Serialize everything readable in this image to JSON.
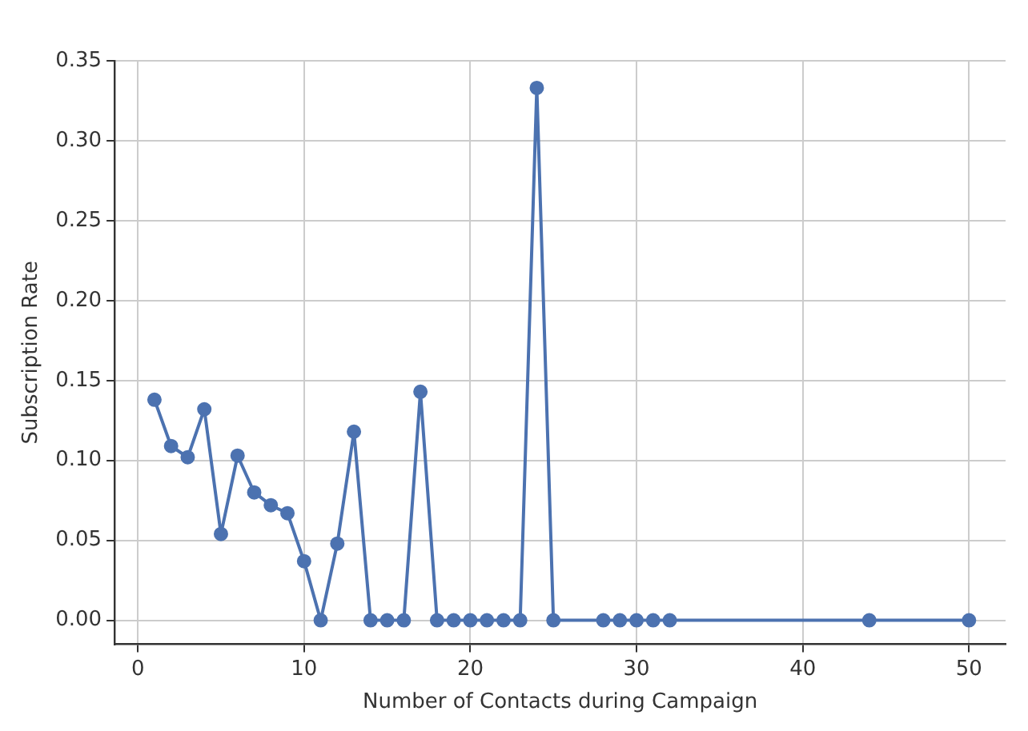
{
  "chart_data": {
    "type": "line",
    "xlabel": "Number of Contacts during Campaign",
    "ylabel": "Subscription Rate",
    "x": [
      1,
      2,
      3,
      4,
      5,
      6,
      7,
      8,
      9,
      10,
      11,
      12,
      13,
      14,
      15,
      16,
      17,
      18,
      19,
      20,
      21,
      22,
      23,
      24,
      25,
      28,
      29,
      30,
      31,
      32,
      44,
      50
    ],
    "series": [
      {
        "color": "#4c72b0",
        "values": [
          0.138,
          0.109,
          0.102,
          0.132,
          0.054,
          0.103,
          0.08,
          0.072,
          0.067,
          0.037,
          0,
          0.048,
          0.118,
          0,
          0,
          0,
          0.143,
          0,
          0,
          0,
          0,
          0,
          0,
          0.333,
          0,
          0,
          0,
          0,
          0,
          0,
          0,
          0
        ]
      }
    ],
    "xlim": [
      -1.4,
      52.2
    ],
    "xticks": [
      0,
      10,
      20,
      30,
      40,
      50
    ],
    "ylim": [
      -0.015,
      0.35
    ],
    "yticks": [
      {
        "value": 0,
        "label": "0.00"
      },
      {
        "value": 0.05,
        "label": "0.05"
      },
      {
        "value": 0.1,
        "label": "0.10"
      },
      {
        "value": 0.15,
        "label": "0.15"
      },
      {
        "value": 0.2,
        "label": "0.20"
      },
      {
        "value": 0.25,
        "label": "0.25"
      },
      {
        "value": 0.3,
        "label": "0.30"
      },
      {
        "value": 0.35,
        "label": "0.35"
      }
    ],
    "grid": true,
    "marker": "circle",
    "line_style": "solid",
    "legend": false
  }
}
